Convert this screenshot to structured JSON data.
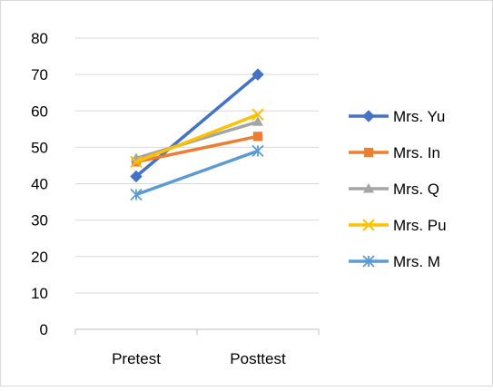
{
  "chart_data": {
    "type": "line",
    "title": "",
    "xlabel": "",
    "ylabel": "",
    "categories": [
      "Pretest",
      "Posttest"
    ],
    "ylim": [
      0,
      80
    ],
    "yticks": [
      0,
      10,
      20,
      30,
      40,
      50,
      60,
      70,
      80
    ],
    "grid": true,
    "legend_position": "right",
    "series": [
      {
        "name": "Mrs. Yu",
        "values": [
          42,
          70
        ],
        "color": "#4472C4",
        "marker": "diamond"
      },
      {
        "name": "Mrs. In",
        "values": [
          46,
          53
        ],
        "color": "#ED7D31",
        "marker": "square"
      },
      {
        "name": "Mrs. Q",
        "values": [
          47,
          57
        ],
        "color": "#A5A5A5",
        "marker": "triangle"
      },
      {
        "name": "Mrs. Pu",
        "values": [
          46,
          59
        ],
        "color": "#FFC000",
        "marker": "x"
      },
      {
        "name": "Mrs. M",
        "values": [
          37,
          49
        ],
        "color": "#5B9BD5",
        "marker": "asterisk"
      }
    ]
  }
}
